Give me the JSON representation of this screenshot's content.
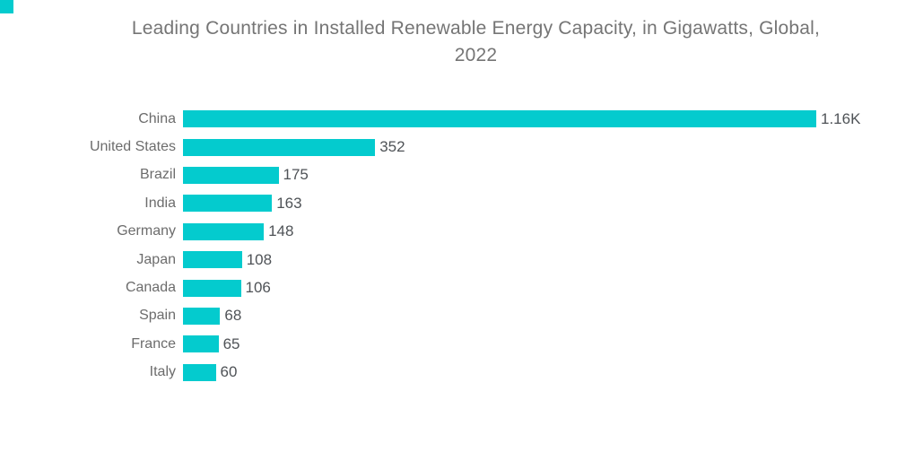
{
  "brand": {
    "square_color": "#04CBCE"
  },
  "chart_data": {
    "type": "bar",
    "orientation": "horizontal",
    "title": "Leading Countries in Installed Renewable Energy Capacity, in Gigawatts, Global, 2022",
    "title_lines": [
      "Leading Countries in Installed Renewable Energy Capacity, in Gigawatts, Global,",
      "2022"
    ],
    "unit": "Gigawatts",
    "year": "2022",
    "categories": [
      "China",
      "United States",
      "Brazil",
      "India",
      "Germany",
      "Japan",
      "Canada",
      "Spain",
      "France",
      "Italy"
    ],
    "values": [
      1160,
      352,
      175,
      163,
      148,
      108,
      106,
      68,
      65,
      60
    ],
    "value_labels": [
      "1.16K",
      "352",
      "175",
      "163",
      "148",
      "108",
      "106",
      "68",
      "65",
      "60"
    ],
    "xlim": [
      0,
      1160
    ],
    "grid": false,
    "legend": false,
    "axes_hidden": true,
    "bar_color": "#04CBCE",
    "title_color": "#757575",
    "category_label_color": "#6C6C6C",
    "value_label_color": "#4F5357",
    "background_color": "#ffffff"
  }
}
